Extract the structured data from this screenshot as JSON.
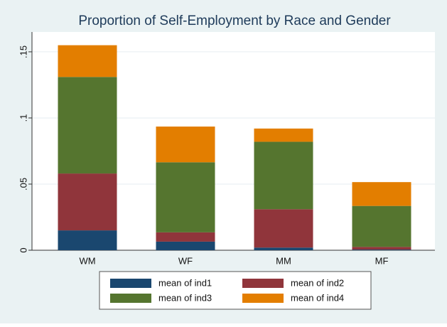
{
  "chart_data": {
    "type": "stacked_bar",
    "title": "Proportion of Self-Employment by Race and Gender",
    "categories": [
      "WM",
      "WF",
      "MM",
      "MF"
    ],
    "series": [
      {
        "name": "mean of ind1",
        "color": "#1a476f",
        "values": [
          0.015,
          0.0065,
          0.002,
          0.0005
        ]
      },
      {
        "name": "mean of ind2",
        "color": "#90353b",
        "values": [
          0.043,
          0.007,
          0.029,
          0.002
        ]
      },
      {
        "name": "mean of ind3",
        "color": "#55752f",
        "values": [
          0.073,
          0.053,
          0.051,
          0.031
        ]
      },
      {
        "name": "mean of ind4",
        "color": "#e37e00",
        "values": [
          0.024,
          0.027,
          0.01,
          0.018
        ]
      }
    ],
    "ylim": [
      0,
      0.165
    ],
    "yticks": [
      0,
      {
        "value": 0.05,
        "label": ".05"
      },
      {
        "value": 0.1,
        "label": ".1"
      },
      {
        "value": 0.15,
        "label": ".15"
      }
    ],
    "grid": true
  }
}
